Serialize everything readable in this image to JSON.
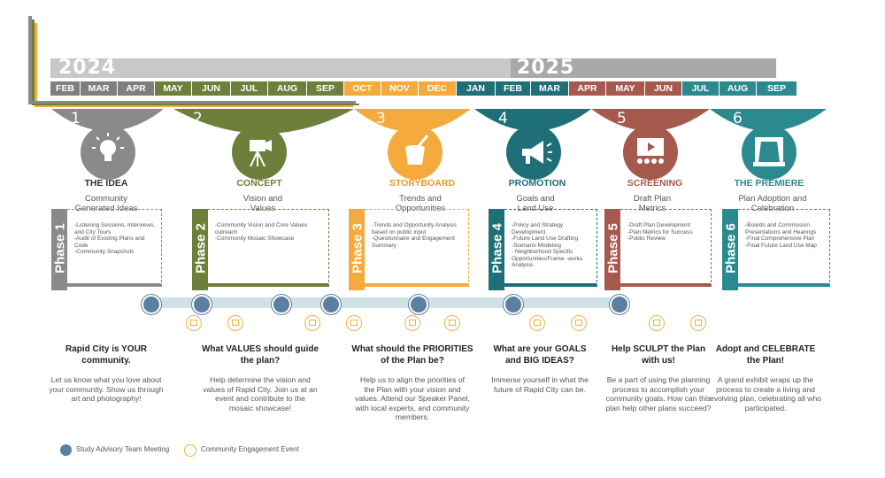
{
  "years": [
    "2024",
    "2025"
  ],
  "months": [
    {
      "label": "FEB",
      "color": "#7f7f7f"
    },
    {
      "label": "MAR",
      "color": "#7f7f7f"
    },
    {
      "label": "APR",
      "color": "#7f7f7f"
    },
    {
      "label": "MAY",
      "color": "#6d7f3a"
    },
    {
      "label": "JUN",
      "color": "#6d7f3a"
    },
    {
      "label": "JUL",
      "color": "#6d7f3a"
    },
    {
      "label": "AUG",
      "color": "#6d7f3a"
    },
    {
      "label": "SEP",
      "color": "#6d7f3a"
    },
    {
      "label": "OCT",
      "color": "#f4aa3c"
    },
    {
      "label": "NOV",
      "color": "#f4aa3c"
    },
    {
      "label": "DEC",
      "color": "#f4aa3c"
    },
    {
      "label": "JAN",
      "color": "#1f6f78"
    },
    {
      "label": "FEB",
      "color": "#1f6f78"
    },
    {
      "label": "MAR",
      "color": "#1f6f78"
    },
    {
      "label": "APR",
      "color": "#a65a4d"
    },
    {
      "label": "MAY",
      "color": "#a65a4d"
    },
    {
      "label": "JUN",
      "color": "#a65a4d"
    },
    {
      "label": "JUL",
      "color": "#2a8a8f"
    },
    {
      "label": "AUG",
      "color": "#2a8a8f"
    },
    {
      "label": "SEP",
      "color": "#2a8a8f"
    }
  ],
  "phases": [
    {
      "num": "1",
      "title": "THE IDEA",
      "subtitle": "Community Generated Ideas",
      "phase_label": "Phase 1",
      "color": "#8a8a8a",
      "title_color": "#333333",
      "icon": "lightbulb-icon",
      "items": [
        "-Listening Sessions, Interviews, and City Tours",
        "-Audit of Existing Plans and Code",
        "-Community Snapshots"
      ],
      "question": "Rapid City is YOUR community.",
      "desc": "Let us know what you love about your community. Show us through art and photography!"
    },
    {
      "num": "2",
      "title": "CONCEPT",
      "subtitle": "Vision and Values",
      "phase_label": "Phase 2",
      "color": "#6d7f3a",
      "title_color": "#6d7f3a",
      "icon": "camera-icon",
      "items": [
        "-Community Vision and Core Values outreach",
        "-Community Mosaic Showcase"
      ],
      "question": "What VALUES should guide the plan?",
      "desc": "Help determine the vision and values of Rapid City. Join us at an event and contribute to the mosaic showcase!"
    },
    {
      "num": "3",
      "title": "STORYBOARD",
      "subtitle": "Trends and Opportunities",
      "phase_label": "Phase 3",
      "color": "#f4aa3c",
      "title_color": "#e89a25",
      "icon": "paint-bucket-icon",
      "items": [
        "-Trends and Opportunity Analysis based on public input",
        "-Questionnaire and Engagement Summary"
      ],
      "question": "What should the PRIORITIES of the Plan be?",
      "desc": "Help us to align the priorities of the Plan with your vision and values. Attend our Speaker Panel, with local experts, and community members."
    },
    {
      "num": "4",
      "title": "PROMOTION",
      "subtitle": "Goals and Land Use",
      "phase_label": "Phase 4",
      "color": "#1f6f78",
      "title_color": "#1f6f78",
      "icon": "megaphone-icon",
      "items": [
        "-Policy and Strategy Development",
        "-Future Land Use Drafting",
        "-Scenario Modeling",
        "- Neighborhood Specific Opportunities/Frame- works Analysis"
      ],
      "question": "What are your GOALS and BIG IDEAS?",
      "desc": "Immerse yourself in what the future of Rapid City can be."
    },
    {
      "num": "5",
      "title": "SCREENING",
      "subtitle": "Draft Plan Metrics",
      "phase_label": "Phase 5",
      "color": "#a65a4d",
      "title_color": "#a65a4d",
      "icon": "screen-audience-icon",
      "items": [
        "-Draft Plan Development",
        "-Plan Metrics for Success",
        "-Public Review"
      ],
      "question": "Help SCULPT the Plan with us!",
      "desc": "Be a part of using the planning process to accomplish your community goals. How can this plan help other plans succeed?"
    },
    {
      "num": "6",
      "title": "THE PREMIERE",
      "subtitle": "Plan Adoption and Celebration",
      "phase_label": "Phase 6",
      "color": "#2a8a8f",
      "title_color": "#2a8a8f",
      "icon": "stage-curtain-icon",
      "items": [
        "-Boards and Commission Presentations and Hearings",
        "-Final Comprehensive Plan",
        "-Final Future Land Use Map"
      ],
      "question": "Adopt and CELEBRATE the Plan!",
      "desc": "A grand exhibit wraps up the process to create a living and evolving plan, celebrating all who participated."
    }
  ],
  "legend": {
    "sat": "Study Advisory Team Meeting",
    "ce": "Community Engagement Event"
  }
}
